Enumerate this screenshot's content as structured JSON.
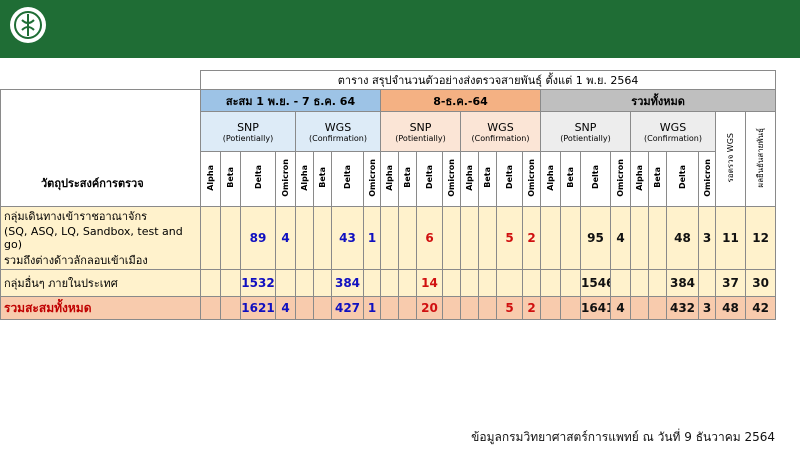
{
  "header": {
    "title": "ตาราง สรุปจำนวนตัวอย่างส่งตรวจสายพันธุ์ ตั้งแต่ 1 พ.ย. 2564"
  },
  "table": {
    "row_header": "วัตถุประสงค์การตรวจ",
    "groups": [
      {
        "label": "สะสม 1 พ.ย. - 7 ธ.ค. 64",
        "subgroups": [
          {
            "name": "SNP",
            "note": "(Potientially)"
          },
          {
            "name": "WGS",
            "note": "(Confirmation)"
          }
        ]
      },
      {
        "label": "8-ธ.ค.-64",
        "subgroups": [
          {
            "name": "SNP",
            "note": "(Potientially)"
          },
          {
            "name": "WGS",
            "note": "(Confirmation)"
          }
        ]
      },
      {
        "label": "รวมทั้งหมด",
        "subgroups": [
          {
            "name": "SNP",
            "note": "(Potientially)"
          },
          {
            "name": "WGS",
            "note": "(Confirmation)"
          }
        ],
        "extra_columns": [
          "รอตรวจ WGS",
          "ผลยืนยันสายพันธุ์"
        ]
      }
    ],
    "variants": [
      "Alpha",
      "Beta",
      "Delta",
      "Omicron"
    ],
    "rows": [
      {
        "label": [
          "กลุ่มเดินทางเข้าราชอาณาจักร",
          "(SQ, ASQ, LQ, Sandbox, test and go)",
          "รวมถึงต่างด้าวลักลอบเข้าเมือง"
        ],
        "cells": [
          null,
          null,
          89,
          4,
          null,
          null,
          43,
          1,
          null,
          null,
          6,
          null,
          null,
          null,
          5,
          2,
          null,
          null,
          95,
          4,
          null,
          null,
          48,
          3,
          11,
          12
        ]
      },
      {
        "label": [
          "กลุ่มอื่นๆ ภายในประเทศ"
        ],
        "cells": [
          null,
          null,
          1532,
          null,
          null,
          null,
          384,
          null,
          null,
          null,
          14,
          null,
          null,
          null,
          null,
          null,
          null,
          null,
          1546,
          null,
          null,
          null,
          384,
          null,
          37,
          30
        ]
      },
      {
        "label": [
          "รวมสะสมทั้งหมด"
        ],
        "cells": [
          null,
          null,
          1621,
          4,
          null,
          null,
          427,
          1,
          null,
          null,
          20,
          null,
          null,
          null,
          5,
          2,
          null,
          null,
          1641,
          4,
          null,
          null,
          432,
          3,
          48,
          42
        ]
      }
    ]
  },
  "footer": "ข้อมูลกรมวิทยาศาสตร์การแพทย์ ณ วันที่ 9 ธันวาคม 2564"
}
